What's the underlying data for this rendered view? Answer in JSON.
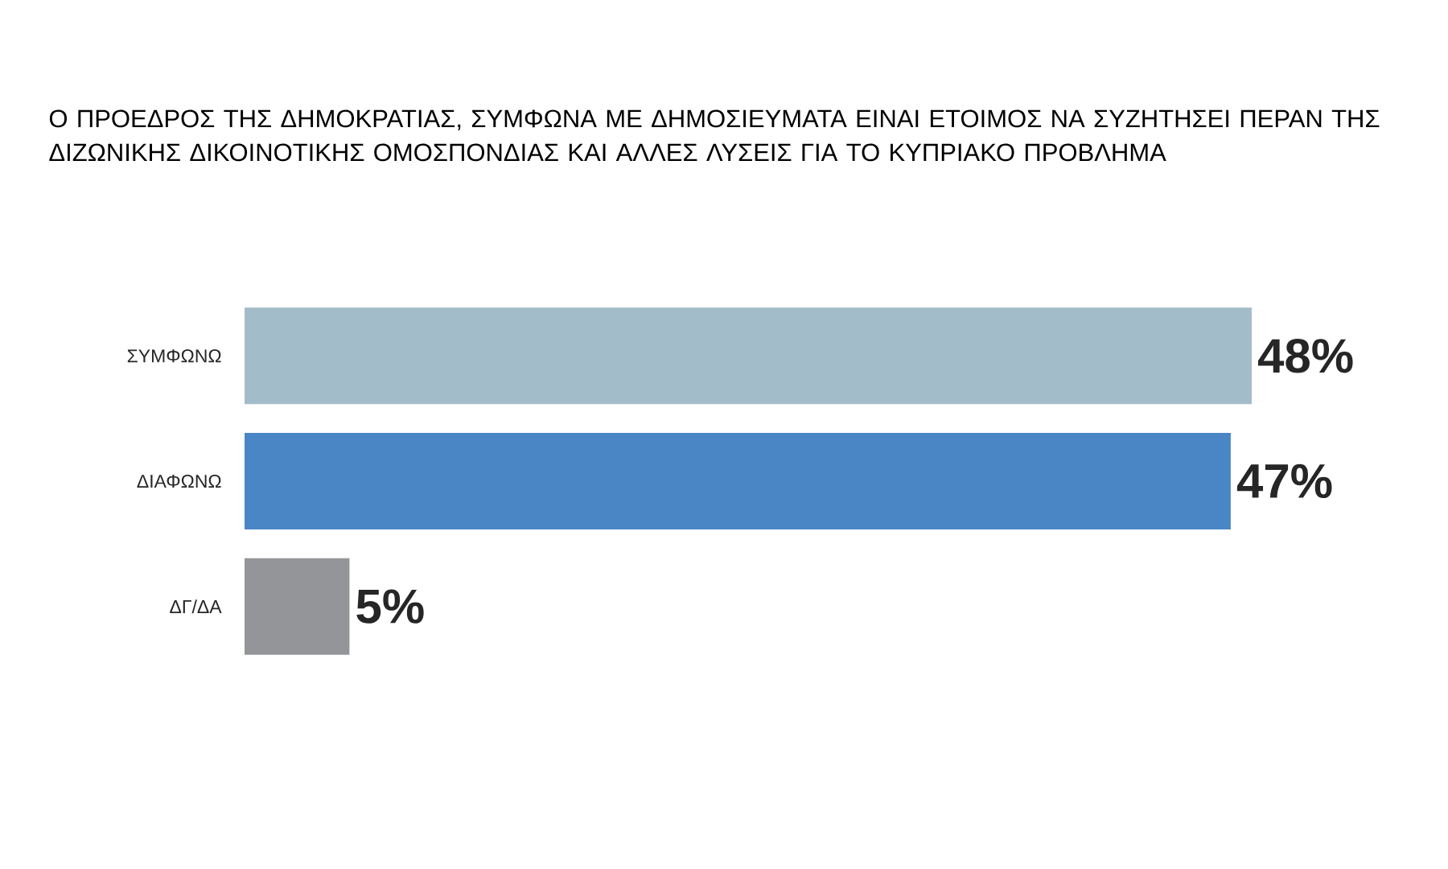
{
  "chart_data": {
    "type": "bar",
    "orientation": "horizontal",
    "title": "Ο ΠΡΟΕΔΡΟΣ ΤΗΣ ΔΗΜΟΚΡΑΤΙΑΣ, ΣΥΜΦΩΝΑ ΜΕ ΔΗΜΟΣΙΕΥΜΑΤΑ ΕΙΝΑΙ ΕΤΟΙΜΟΣ ΝΑ ΣΥΖΗΤΗΣΕΙ ΠΕΡΑΝ ΤΗΣ ΔΙΖΩΝΙΚΗΣ ΔΙΚΟΙΝΟΤΙΚΗΣ ΟΜΟΣΠΟΝΔΙΑΣ ΚΑΙ ΑΛΛΕΣ ΛΥΣΕΙΣ ΓΙΑ ΤΟ ΚΥΠΡΙΑΚΟ ΠΡΟΒΛΗΜΑ",
    "categories": [
      "ΣΥΜΦΩΝΩ",
      "ΔΙΑΦΩΝΩ",
      "ΔΓ/ΔΑ"
    ],
    "values": [
      48,
      47,
      5
    ],
    "colors": [
      "#a3bcc9",
      "#4a86c5",
      "#939598"
    ],
    "value_labels": [
      "48%",
      "47%",
      "5%"
    ]
  }
}
